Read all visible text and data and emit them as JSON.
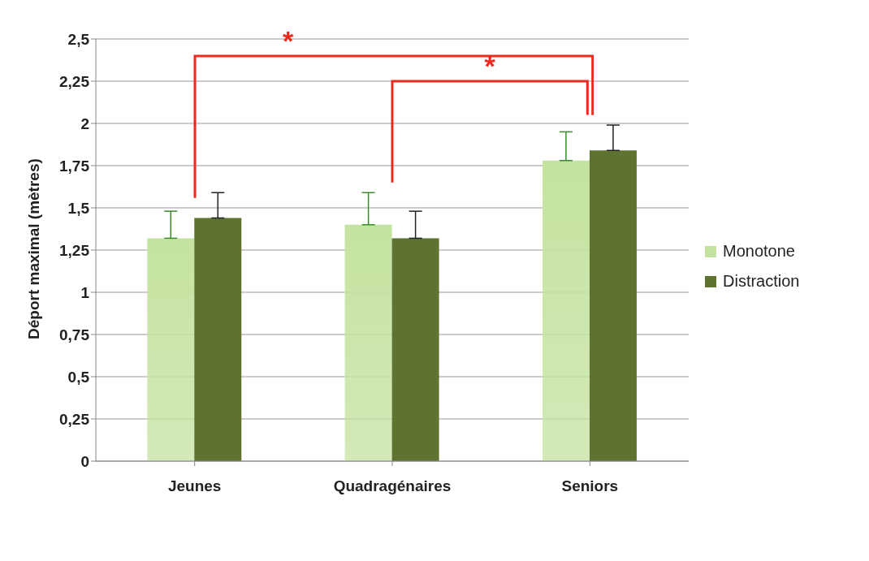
{
  "chart_data": {
    "type": "bar",
    "categories": [
      "Jeunes",
      "Quadragénaires",
      "Seniors"
    ],
    "ylabel": "Déport maximal (mètres)",
    "series": [
      {
        "name": "Monotone",
        "color": "#c4e3a0",
        "values": [
          1.32,
          1.4,
          1.78
        ],
        "errors": [
          [
            1.32,
            1.48
          ],
          [
            1.4,
            1.59
          ],
          [
            1.78,
            1.95
          ]
        ]
      },
      {
        "name": "Distraction",
        "color": "#5e7330",
        "values": [
          1.44,
          1.32,
          1.84
        ],
        "errors": [
          [
            1.44,
            1.59
          ],
          [
            1.32,
            1.48
          ],
          [
            1.84,
            1.99
          ]
        ]
      }
    ],
    "ylim": [
      0,
      2.5
    ],
    "yticks": [
      0,
      {
        "value": 0.25,
        "label": "0,25"
      },
      {
        "value": 0.5,
        "label": "0,5"
      },
      {
        "value": 0.75,
        "label": "0,75"
      },
      1,
      {
        "value": 1.25,
        "label": "1,25"
      },
      {
        "value": 1.5,
        "label": "1,5"
      },
      {
        "value": 1.75,
        "label": "1,75"
      },
      2,
      {
        "value": 2.25,
        "label": "2,25"
      },
      {
        "value": 2.5,
        "label": "2,5"
      }
    ],
    "grid": "y",
    "legend": "right",
    "annotations": [
      "*",
      "*"
    ]
  }
}
